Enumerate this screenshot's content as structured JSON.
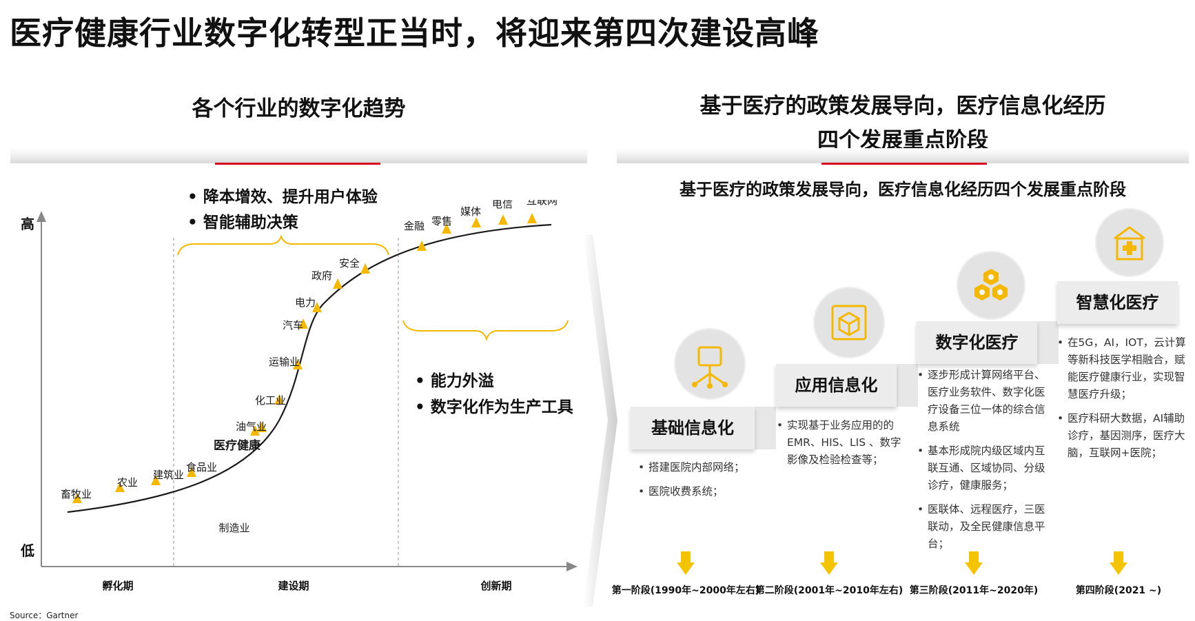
{
  "main_title": "医疗健康行业数字化转型正当时，将迎来第四次建设高峰",
  "left_panel": {
    "title": "各个行业的数字化趋势",
    "y_high": "高",
    "y_low": "低",
    "phases": [
      "孵化期",
      "建设期",
      "创新期"
    ],
    "top_bullets": [
      "降本增效、提升用户体验",
      "智能辅助决策"
    ],
    "right_bullets": [
      "能力外溢",
      "数字化作为生产工具"
    ],
    "manufacturing_label": "制造业",
    "industries": [
      {
        "name": "畜牧业",
        "bold": false
      },
      {
        "name": "农业",
        "bold": false
      },
      {
        "name": "建筑业",
        "bold": false
      },
      {
        "name": "食品业",
        "bold": false
      },
      {
        "name": "医疗健康",
        "bold": true
      },
      {
        "name": "油气业",
        "bold": false
      },
      {
        "name": "化工业",
        "bold": false
      },
      {
        "name": "运输业",
        "bold": false
      },
      {
        "name": "汽车",
        "bold": false
      },
      {
        "name": "电力",
        "bold": false
      },
      {
        "name": "政府",
        "bold": false
      },
      {
        "name": "安全",
        "bold": false
      },
      {
        "name": "金融",
        "bold": false
      },
      {
        "name": "零售",
        "bold": false
      },
      {
        "name": "媒体",
        "bold": false
      },
      {
        "name": "电信",
        "bold": false
      },
      {
        "name": "互联网",
        "bold": false
      }
    ]
  },
  "right_panel": {
    "title_line1": "基于医疗的政策发展导向，医疗信息化经历",
    "title_line2": "四个发展重点阶段",
    "subtitle": "基于医疗的政策发展导向，医疗信息化经历四个发展重点阶段",
    "stages": [
      {
        "name": "基础信息化",
        "icon": "network-node-icon",
        "phase": "第一阶段(1990年~2000年左右)",
        "items": [
          "搭建医院内部网络；",
          "医院收费系统；"
        ]
      },
      {
        "name": "应用信息化",
        "icon": "cube-icon",
        "phase": "第二阶段(2001年~2010年左右)",
        "items": [
          "实现基于业务应用的的EMR、HIS、LIS 、数字影像及检验检查等；"
        ]
      },
      {
        "name": "数字化医疗",
        "icon": "hexagon-cluster-icon",
        "phase": "第三阶段(2011年~2020年)",
        "items": [
          "逐步形成计算网络平台、医疗业务软件、数字化医疗设备三位一体的综合信息系统",
          "基本形成院内级区域内互联互通、区域协同、分级诊疗，健康服务；",
          "医联体、远程医疗，三医联动，及全民健康信息平台；"
        ]
      },
      {
        "name": "智慧化医疗",
        "icon": "smart-hospital-icon",
        "phase": "第四阶段(2021 ~)",
        "items": [
          "在5G，AI，IOT，云计算等新科技医学相融合，赋能医疗健康行业，实现智慧医疗升级；",
          "医疗科研大数据，AI辅助诊疗，基因测序，医疗大脑，互联网+医院；"
        ]
      }
    ]
  },
  "source": "Source：Gartner",
  "colors": {
    "accent": "#f5b800",
    "red": "#d4001c",
    "box_gray": "#ececec"
  }
}
